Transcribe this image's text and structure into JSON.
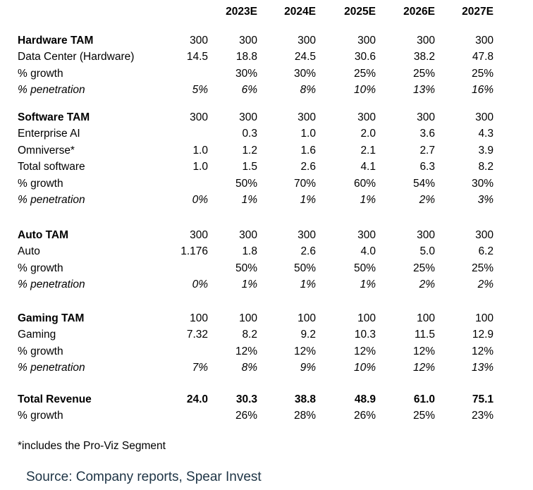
{
  "table": {
    "columns": [
      "",
      "",
      "2023E",
      "2024E",
      "2025E",
      "2026E",
      "2027E"
    ],
    "sections": [
      {
        "rows": [
          {
            "label": "Hardware TAM",
            "bold_label": true,
            "bold_values": false,
            "italic": false,
            "values": [
              "300",
              "300",
              "300",
              "300",
              "300",
              "300"
            ]
          },
          {
            "label": "Data Center (Hardware)",
            "bold_label": false,
            "bold_values": false,
            "italic": false,
            "values": [
              "14.5",
              "18.8",
              "24.5",
              "30.6",
              "38.2",
              "47.8"
            ]
          },
          {
            "label": "% growth",
            "bold_label": false,
            "bold_values": false,
            "italic": false,
            "values": [
              "",
              "30%",
              "30%",
              "25%",
              "25%",
              "25%"
            ]
          },
          {
            "label": "% penetration",
            "bold_label": false,
            "bold_values": false,
            "italic": true,
            "values": [
              "5%",
              "6%",
              "8%",
              "10%",
              "13%",
              "16%"
            ]
          }
        ]
      },
      {
        "rows": [
          {
            "label": "Software TAM",
            "bold_label": true,
            "bold_values": false,
            "italic": false,
            "values": [
              "300",
              "300",
              "300",
              "300",
              "300",
              "300"
            ]
          },
          {
            "label": "Enterprise AI",
            "bold_label": false,
            "bold_values": false,
            "italic": false,
            "values": [
              "",
              "0.3",
              "1.0",
              "2.0",
              "3.6",
              "4.3"
            ]
          },
          {
            "label": "Omniverse*",
            "bold_label": false,
            "bold_values": false,
            "italic": false,
            "values": [
              "1.0",
              "1.2",
              "1.6",
              "2.1",
              "2.7",
              "3.9"
            ]
          },
          {
            "label": "Total software",
            "bold_label": false,
            "bold_values": false,
            "italic": false,
            "values": [
              "1.0",
              "1.5",
              "2.6",
              "4.1",
              "6.3",
              "8.2"
            ]
          },
          {
            "label": "% growth",
            "bold_label": false,
            "bold_values": false,
            "italic": false,
            "values": [
              "",
              "50%",
              "70%",
              "60%",
              "54%",
              "30%"
            ]
          },
          {
            "label": "% penetration",
            "bold_label": false,
            "bold_values": false,
            "italic": true,
            "values": [
              "0%",
              "1%",
              "1%",
              "1%",
              "2%",
              "3%"
            ]
          }
        ]
      },
      {
        "rows": [
          {
            "label": "Auto TAM",
            "bold_label": true,
            "bold_values": false,
            "italic": false,
            "values": [
              "300",
              "300",
              "300",
              "300",
              "300",
              "300"
            ]
          },
          {
            "label": "Auto",
            "bold_label": false,
            "bold_values": false,
            "italic": false,
            "values": [
              "1.176",
              "1.8",
              "2.6",
              "4.0",
              "5.0",
              "6.2"
            ]
          },
          {
            "label": "% growth",
            "bold_label": false,
            "bold_values": false,
            "italic": false,
            "values": [
              "",
              "50%",
              "50%",
              "50%",
              "25%",
              "25%"
            ]
          },
          {
            "label": "% penetration",
            "bold_label": false,
            "bold_values": false,
            "italic": true,
            "values": [
              "0%",
              "1%",
              "1%",
              "1%",
              "2%",
              "2%"
            ]
          }
        ]
      },
      {
        "rows": [
          {
            "label": "Gaming TAM",
            "bold_label": true,
            "bold_values": false,
            "italic": false,
            "values": [
              "100",
              "100",
              "100",
              "100",
              "100",
              "100"
            ]
          },
          {
            "label": "Gaming",
            "bold_label": false,
            "bold_values": false,
            "italic": false,
            "values": [
              "7.32",
              "8.2",
              "9.2",
              "10.3",
              "11.5",
              "12.9"
            ]
          },
          {
            "label": "% growth",
            "bold_label": false,
            "bold_values": false,
            "italic": false,
            "values": [
              "",
              "12%",
              "12%",
              "12%",
              "12%",
              "12%"
            ]
          },
          {
            "label": "% penetration",
            "bold_label": false,
            "bold_values": false,
            "italic": true,
            "values": [
              "7%",
              "8%",
              "9%",
              "10%",
              "12%",
              "13%"
            ]
          }
        ]
      },
      {
        "rows": [
          {
            "label": "Total Revenue",
            "bold_label": true,
            "bold_values": true,
            "italic": false,
            "values": [
              "24.0",
              "30.3",
              "38.8",
              "48.9",
              "61.0",
              "75.1"
            ]
          },
          {
            "label": "% growth",
            "bold_label": false,
            "bold_values": false,
            "italic": false,
            "values": [
              "",
              "26%",
              "28%",
              "26%",
              "25%",
              "23%"
            ]
          }
        ]
      }
    ]
  },
  "footnote": "*includes the Pro-Viz Segment",
  "source": "Source: Company reports, Spear Invest",
  "colors": {
    "background": "#ffffff",
    "text": "#000000",
    "source_text": "#1e3445"
  }
}
